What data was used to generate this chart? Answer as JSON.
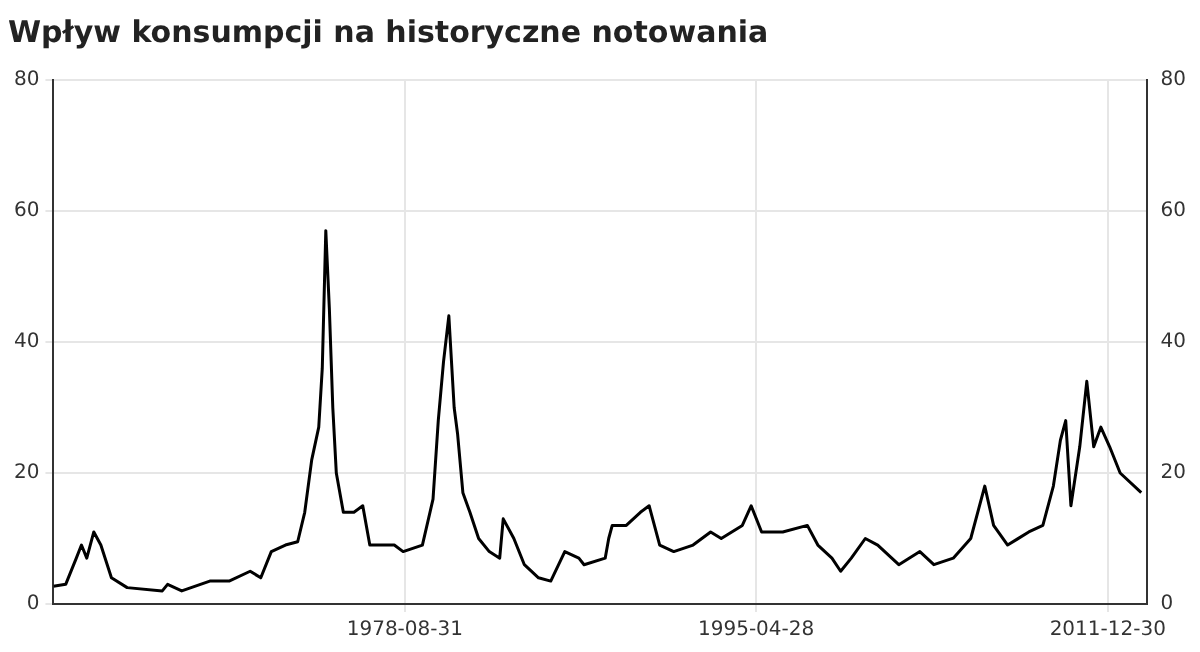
{
  "chart_data": {
    "type": "line",
    "title": "Wpływ konsumpcji na historyczne notowania",
    "x": [
      "1962-01",
      "1962-08",
      "1963-02",
      "1963-05",
      "1963-08",
      "1963-12",
      "1964-04",
      "1964-10",
      "1965-07",
      "1967-03",
      "1967-06",
      "1968-02",
      "1969-06",
      "1970-05",
      "1971-05",
      "1971-11",
      "1972-05",
      "1973-01",
      "1973-08",
      "1973-12",
      "1974-04",
      "1974-08",
      "1974-10",
      "1974-12",
      "1975-02",
      "1975-04",
      "1975-06",
      "1975-10",
      "1976-04",
      "1976-09",
      "1977-01",
      "1977-07",
      "1978-03",
      "1978-08",
      "1979-07",
      "1980-01",
      "1980-04",
      "1980-07",
      "1980-10",
      "1981-01",
      "1981-03",
      "1981-06",
      "1981-10",
      "1982-03",
      "1982-09",
      "1983-03",
      "1983-05",
      "1983-11",
      "1984-05",
      "1985-01",
      "1985-08",
      "1986-04",
      "1986-12",
      "1987-03",
      "1988-03",
      "1988-05",
      "1988-07",
      "1989-03",
      "1989-11",
      "1990-04",
      "1990-10",
      "1991-06",
      "1992-05",
      "1993-03",
      "1993-09",
      "1994-09",
      "1995-02",
      "1995-08",
      "1996-08",
      "1997-10",
      "1998-04",
      "1998-12",
      "1999-05",
      "1999-11",
      "2000-07",
      "2001-02",
      "2002-02",
      "2003-02",
      "2003-10",
      "2004-09",
      "2005-07",
      "2006-03",
      "2006-08",
      "2007-04",
      "2008-04",
      "2008-12",
      "2009-06",
      "2009-10",
      "2010-01",
      "2010-04",
      "2010-09",
      "2011-01",
      "2011-05",
      "2011-09",
      "2012-02",
      "2012-08",
      "2013-08"
    ],
    "series": [
      {
        "color": "#000000",
        "values": [
          2.7,
          3,
          7,
          9,
          7,
          11,
          9,
          4,
          2.5,
          2,
          3,
          2,
          3.5,
          3.5,
          5,
          4,
          8,
          9,
          9.5,
          14,
          22,
          27,
          36,
          57,
          45,
          30,
          20,
          14,
          14,
          15,
          9,
          9,
          9,
          8,
          9,
          16,
          28,
          37,
          44,
          30,
          26,
          17,
          14,
          10,
          8,
          7,
          13,
          10,
          6,
          4,
          3.5,
          8,
          7,
          6,
          7,
          10,
          12,
          12,
          14,
          15,
          9,
          8,
          9,
          11,
          10,
          12,
          15,
          11,
          11,
          12,
          9,
          7,
          5,
          7,
          10,
          9,
          6,
          8,
          6,
          7,
          10,
          18,
          12,
          9,
          11,
          12,
          18,
          25,
          28,
          15,
          24,
          34,
          24,
          27,
          24,
          20,
          17
        ]
      }
    ],
    "xlim": [
      "1962-01-01",
      "2013-11-01"
    ],
    "xticks": [
      "1978-08-31",
      "1995-04-28",
      "2011-12-30"
    ],
    "ylim": [
      0,
      80
    ],
    "yticks": [
      0,
      20,
      40,
      60,
      80
    ],
    "y2lim": [
      0,
      80
    ],
    "y2ticks": [
      0,
      20,
      40,
      60,
      80
    ],
    "grid": true,
    "legend": false,
    "marker": "none",
    "line_style": "solid"
  }
}
